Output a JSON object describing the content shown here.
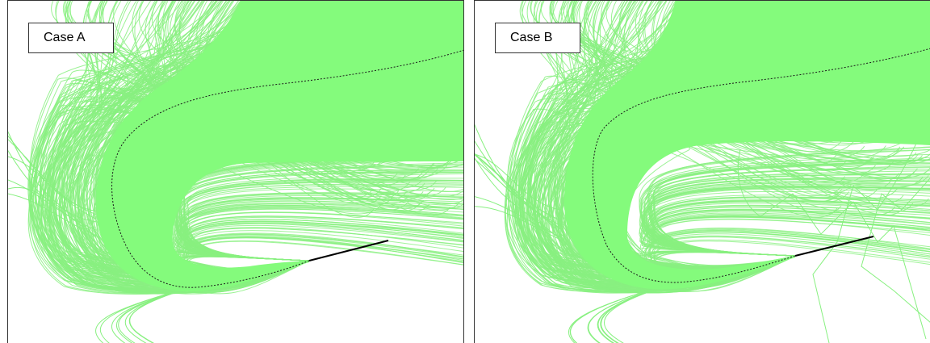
{
  "panels": [
    {
      "label": "Case A"
    },
    {
      "label": "Case B"
    }
  ],
  "colors": {
    "streamlines": "#88f080",
    "streamline_fill": "#84fb7c",
    "mean_path": "#1a1a1a",
    "solid_segment": "#000000",
    "frame": "#333333",
    "background": "#ffffff"
  }
}
